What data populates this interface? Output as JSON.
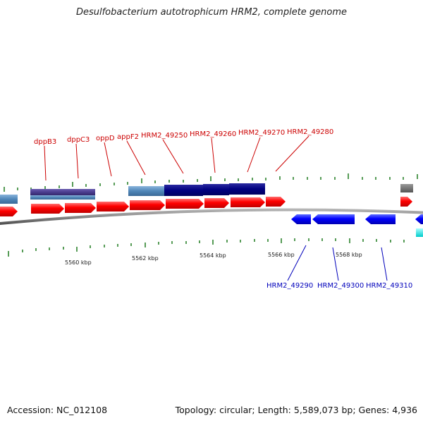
{
  "title": "Desulfobacterium autotrophicum HRM2, complete genome",
  "accession": "Accession: NC_012108",
  "summary": "Topology: circular; Length: 5,589,073 bp; Genes: 4,936",
  "colors": {
    "forward_gene": "#ff0000",
    "reverse_gene": "#0000ff",
    "cds_light": "#4f86b8",
    "cds_dark": "#000080",
    "cds_purple": "#4b3d8f",
    "tick": "#1f7a1f",
    "backbone": "#777777",
    "red_label": "#cc0000",
    "blue_label": "#0000bb"
  },
  "scale_labels": [
    "5560 kbp",
    "5562 kbp",
    "5564 kbp",
    "5566 kbp",
    "5568 kbp"
  ],
  "forward_labels": [
    "dppB3",
    "dppC3",
    "oppD",
    "appF2",
    "HRM2_49250",
    "HRM2_49260",
    "HRM2_49270",
    "HRM2_49280"
  ],
  "reverse_labels": [
    "HRM2_49290",
    "HRM2_49300",
    "HRM2_49310"
  ]
}
